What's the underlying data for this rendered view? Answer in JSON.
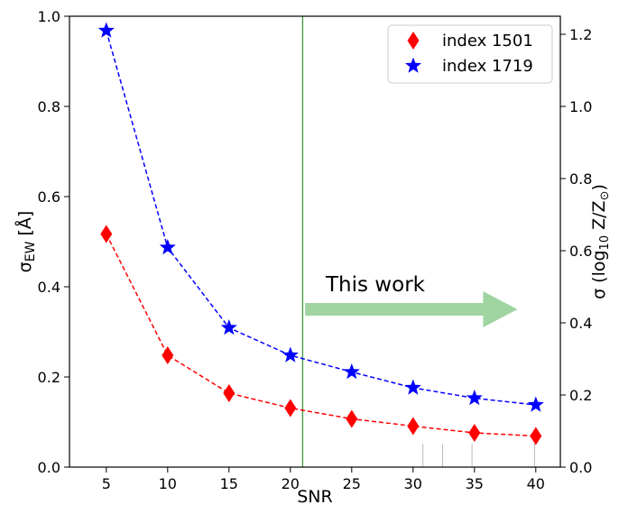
{
  "chart_data": {
    "type": "line",
    "x": [
      5,
      10,
      15,
      20,
      25,
      30,
      35,
      40
    ],
    "series": [
      {
        "name": "index 1501",
        "values": [
          0.517,
          0.248,
          0.164,
          0.131,
          0.107,
          0.091,
          0.076,
          0.069
        ],
        "color": "#ff0000",
        "marker": "diamond",
        "linestyle": "dashed"
      },
      {
        "name": "index 1719",
        "values": [
          0.968,
          0.487,
          0.309,
          0.248,
          0.211,
          0.176,
          0.153,
          0.138
        ],
        "color": "#0000ff",
        "marker": "star",
        "linestyle": "dashed"
      }
    ],
    "xlabel": "SNR",
    "ylabel_main": "σ",
    "ylabel_sub": "EW",
    "ylabel_unit": " [Å]",
    "y2label_pre": "σ (log",
    "y2label_sub": "10",
    "y2label_mid": " Z/Z",
    "y2label_sun": "⊙",
    "y2label_post": ")",
    "xlim": [
      2,
      42
    ],
    "ylim": [
      0,
      1.0
    ],
    "y2lim": [
      0,
      1.25
    ],
    "xticks": [
      5,
      10,
      15,
      20,
      25,
      30,
      35,
      40
    ],
    "yticks": [
      "0.0",
      "0.2",
      "0.4",
      "0.6",
      "0.8",
      "1.0"
    ],
    "y2ticks": [
      "0.0",
      "0.2",
      "0.4",
      "0.6",
      "0.8",
      "1.0",
      "1.2"
    ],
    "vline_x": 21,
    "vline_color": "#3a9a3a",
    "annotation": {
      "text": "This work",
      "arrow_from_x": 21.2,
      "arrow_to_x": 38.5,
      "arrow_y": 0.35,
      "color": "#8fcc8f"
    },
    "grid": false,
    "legend_position": "top-right"
  }
}
